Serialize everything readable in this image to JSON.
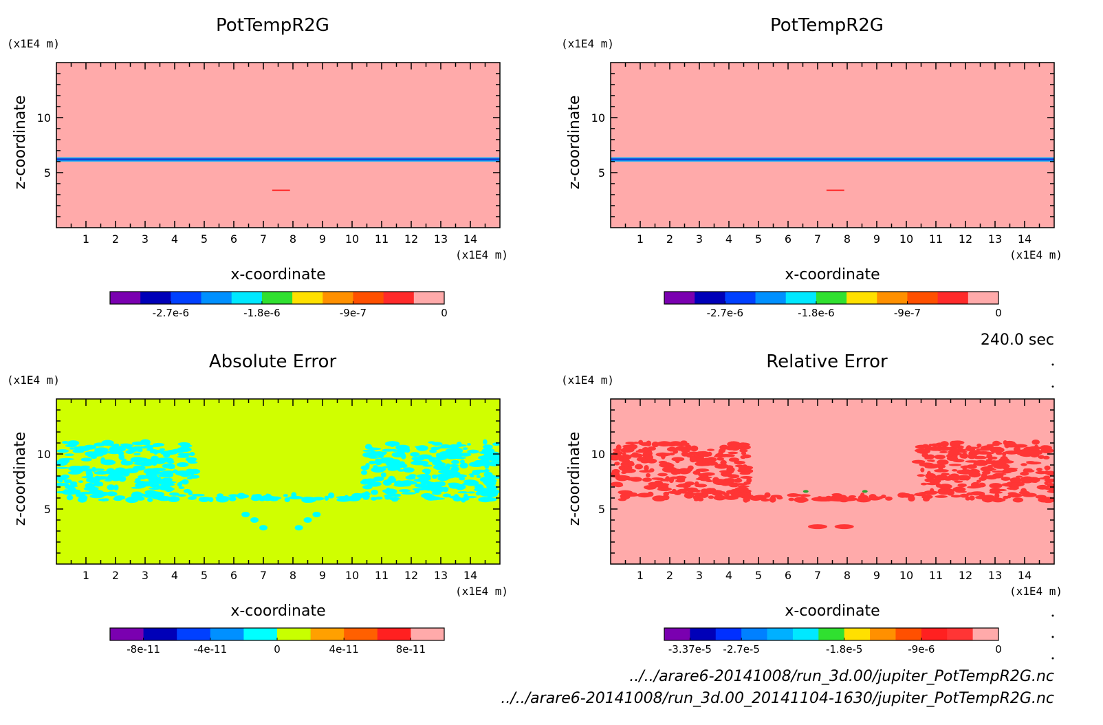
{
  "time_label": "240.0 sec",
  "footer": {
    "file1": "../../arare6-20141008/run_3d.00/jupiter_PotTempR2G.nc",
    "file2": "../../arare6-20141008/run_3d.00_20141104-1630/jupiter_PotTempR2G.nc"
  },
  "chart_data": [
    {
      "type": "heatmap",
      "title": "PotTempR2G",
      "xlabel": "x-coordinate",
      "ylabel": "z-coordinate",
      "x_unit": "(x1E4 m)",
      "y_unit": "(x1E4 m)",
      "xlim": [
        0,
        15
      ],
      "ylim": [
        0,
        15
      ],
      "x_ticks": [
        "1",
        "2",
        "3",
        "4",
        "5",
        "6",
        "7",
        "8",
        "9",
        "10",
        "11",
        "12",
        "13",
        "14"
      ],
      "y_ticks": [
        "5",
        "10"
      ],
      "background_color": "#ffaaaa",
      "features": [
        {
          "kind": "band",
          "z": 6.2,
          "color": "#1a3fd0",
          "label": "negative anomaly layer"
        },
        {
          "kind": "segment",
          "x": [
            7.3,
            7.9
          ],
          "z": 3.4,
          "color": "#ff2020"
        }
      ],
      "colorbar": {
        "colors": [
          "#7a00b0",
          "#0000b8",
          "#0040ff",
          "#0090ff",
          "#00e8ff",
          "#30e030",
          "#ffe000",
          "#ff9000",
          "#ff5000",
          "#ff2a2a",
          "#ffaaaa"
        ],
        "labels": [
          "-2.7e-6",
          "-1.8e-6",
          "-9e-7",
          "0"
        ]
      }
    },
    {
      "type": "heatmap",
      "title": "PotTempR2G",
      "xlabel": "x-coordinate",
      "ylabel": "z-coordinate",
      "x_unit": "(x1E4 m)",
      "y_unit": "(x1E4 m)",
      "xlim": [
        0,
        15
      ],
      "ylim": [
        0,
        15
      ],
      "x_ticks": [
        "1",
        "2",
        "3",
        "4",
        "5",
        "6",
        "7",
        "8",
        "9",
        "10",
        "11",
        "12",
        "13",
        "14"
      ],
      "y_ticks": [
        "5",
        "10"
      ],
      "background_color": "#ffaaaa",
      "features": [
        {
          "kind": "band",
          "z": 6.2,
          "color": "#1a3fd0",
          "label": "negative anomaly layer"
        },
        {
          "kind": "segment",
          "x": [
            7.3,
            7.9
          ],
          "z": 3.4,
          "color": "#ff2020"
        }
      ],
      "colorbar": {
        "colors": [
          "#7a00b0",
          "#0000b8",
          "#0040ff",
          "#0090ff",
          "#00e8ff",
          "#30e030",
          "#ffe000",
          "#ff9000",
          "#ff5000",
          "#ff2a2a",
          "#ffaaaa"
        ],
        "labels": [
          "-2.7e-6",
          "-1.8e-6",
          "-9e-7",
          "0"
        ]
      }
    },
    {
      "type": "heatmap",
      "title": "Absolute Error",
      "xlabel": "x-coordinate",
      "ylabel": "z-coordinate",
      "x_unit": "(x1E4 m)",
      "y_unit": "(x1E4 m)",
      "xlim": [
        0,
        15
      ],
      "ylim": [
        0,
        15
      ],
      "x_ticks": [
        "1",
        "2",
        "3",
        "4",
        "5",
        "6",
        "7",
        "8",
        "9",
        "10",
        "11",
        "12",
        "13",
        "14"
      ],
      "y_ticks": [
        "5",
        "10"
      ],
      "background_color": "#d0ff00",
      "pattern_color": "#00ffff",
      "colorbar": {
        "colors": [
          "#7a00b0",
          "#0000b8",
          "#0040ff",
          "#0090ff",
          "#00ffff",
          "#c8ff00",
          "#ffa000",
          "#ff6000",
          "#ff2020",
          "#ffaaaa"
        ],
        "labels": [
          "-8e-11",
          "-4e-11",
          "0",
          "4e-11",
          "8e-11"
        ]
      }
    },
    {
      "type": "heatmap",
      "title": "Relative Error",
      "xlabel": "x-coordinate",
      "ylabel": "z-coordinate",
      "x_unit": "(x1E4 m)",
      "y_unit": "(x1E4 m)",
      "xlim": [
        0,
        15
      ],
      "ylim": [
        0,
        15
      ],
      "x_ticks": [
        "1",
        "2",
        "3",
        "4",
        "5",
        "6",
        "7",
        "8",
        "9",
        "10",
        "11",
        "12",
        "13",
        "14"
      ],
      "y_ticks": [
        "5",
        "10"
      ],
      "background_color": "#ffaaaa",
      "pattern_color": "#ff3535",
      "colorbar": {
        "colors": [
          "#7a00b0",
          "#0000b8",
          "#0030ff",
          "#0080ff",
          "#00b0ff",
          "#00e8ff",
          "#30e030",
          "#ffe000",
          "#ff9000",
          "#ff5000",
          "#ff2020",
          "#ff3535",
          "#ffaaaa"
        ],
        "labels": [
          "-3.37e-5",
          "-2.7e-5",
          "-1.8e-5",
          "-9e-6",
          "0"
        ]
      }
    }
  ]
}
